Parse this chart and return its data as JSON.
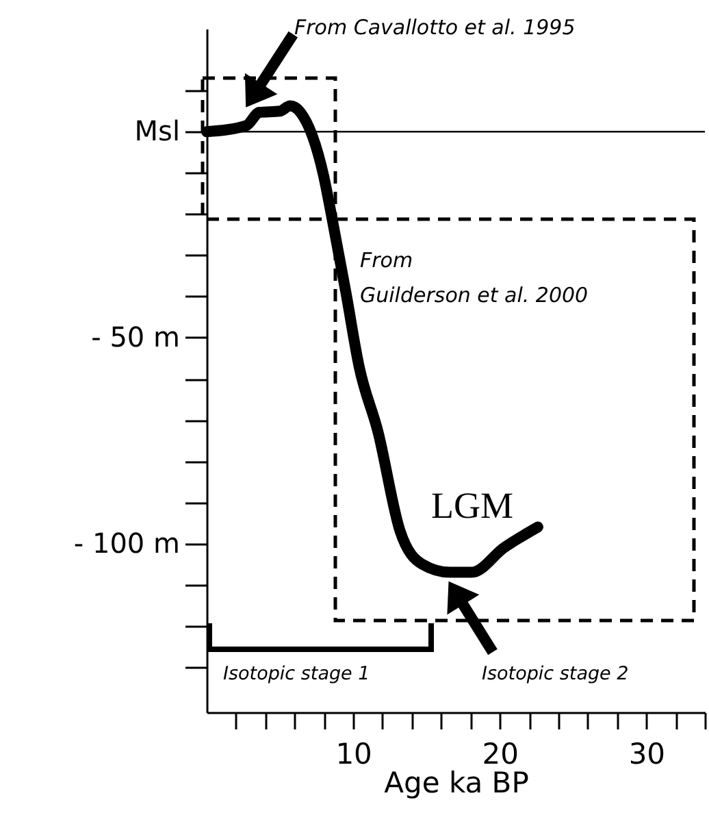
{
  "chart_data": {
    "type": "line",
    "xlabel": "Age ka BP",
    "xlim": [
      0,
      34
    ],
    "ylim": [
      -141,
      25
    ],
    "xticks": [
      {
        "value": 2,
        "label": null
      },
      {
        "value": 4,
        "label": null
      },
      {
        "value": 6,
        "label": null
      },
      {
        "value": 8,
        "label": null
      },
      10,
      {
        "value": 12,
        "label": null
      },
      {
        "value": 14,
        "label": null
      },
      {
        "value": 16,
        "label": null
      },
      {
        "value": 18,
        "label": null
      },
      20,
      {
        "value": 22,
        "label": null
      },
      {
        "value": 24,
        "label": null
      },
      {
        "value": 26,
        "label": null
      },
      {
        "value": 28,
        "label": null
      },
      30,
      {
        "value": 32,
        "label": null
      },
      {
        "value": 34,
        "label": null
      }
    ],
    "yticks": [
      {
        "value": 10,
        "label": null
      },
      {
        "value": 0,
        "label": "Msl"
      },
      {
        "value": -10,
        "label": null
      },
      {
        "value": -20,
        "label": null
      },
      {
        "value": -30,
        "label": null
      },
      {
        "value": -40,
        "label": null
      },
      {
        "value": -50,
        "label": "- 50 m"
      },
      {
        "value": -60,
        "label": null
      },
      {
        "value": -70,
        "label": null
      },
      {
        "value": -80,
        "label": null
      },
      {
        "value": -90,
        "label": null
      },
      {
        "value": -100,
        "label": "- 100 m"
      },
      {
        "value": -110,
        "label": null
      },
      {
        "value": -120,
        "label": null
      },
      {
        "value": -130,
        "label": null
      }
    ],
    "grid": false,
    "series": [
      {
        "type": "line",
        "color": "#000000",
        "line_style": "solid",
        "x": [
          0,
          2.7,
          3.6,
          5,
          5.7,
          6.4,
          8,
          8.5,
          9.5,
          10.4,
          11.7,
          13.2,
          14.7,
          16.6,
          18.1,
          20.3,
          22.6
        ],
        "values": [
          0,
          1.5,
          4.7,
          5,
          6.3,
          4.7,
          -11,
          -20,
          -39,
          -57,
          -73,
          -97,
          -105,
          -107,
          -107,
          -101,
          -96
        ]
      }
    ],
    "ref_lines": [
      {
        "axis": "y",
        "value": 0,
        "color": "#000000"
      }
    ],
    "annotations": [
      "From Cavallotto et al. 1995",
      "From\nGuilderson et al. 2000",
      "LGM",
      "Isotopic stage 1",
      "Isotopic stage 2"
    ]
  }
}
